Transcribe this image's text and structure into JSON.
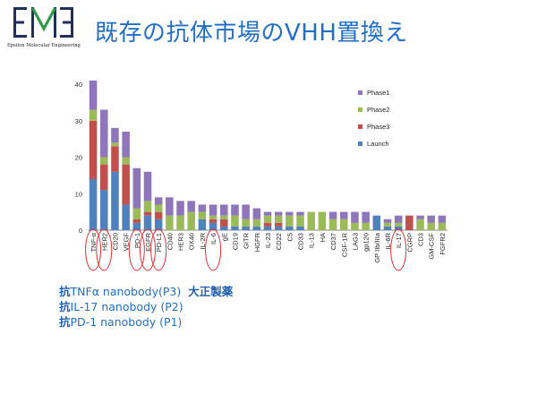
{
  "logo": {
    "text": "Epsilon Molecular Engineering",
    "colors": {
      "navy": "#1e2f5c",
      "green": "#2f9a47"
    }
  },
  "slide": {
    "title": "既存の抗体市場のVHH置換え"
  },
  "colors": {
    "Phase1": "#8f75b9",
    "Phase2": "#9bbb59",
    "Phase3": "#c0504d",
    "Launch": "#4f81bd",
    "highlight": "#e03030",
    "title": "#1f6fc5"
  },
  "chart_data": {
    "type": "bar",
    "stacked": true,
    "ylim": [
      0,
      40
    ],
    "yticks": [
      0,
      10,
      20,
      30,
      40
    ],
    "grid": false,
    "legend_position": "right",
    "categories": [
      "TNF-α",
      "HER2",
      "CD20",
      "VEGF",
      "PD-1",
      "EGFR",
      "PD-L1",
      "CD40",
      "HER3",
      "OX40",
      "IL-2R",
      "IL-6",
      "gE",
      "CD19",
      "GITR",
      "HGFR",
      "IL-23",
      "CD22",
      "C5",
      "CD33",
      "IL-13",
      "HA",
      "CD37",
      "CSF-1R",
      "LAG3",
      "gp120",
      "GP IIb/IIIa",
      "IL-6R",
      "IL-17",
      "CGRP",
      "CD3",
      "GM-CSF",
      "FGFR2"
    ],
    "series": [
      {
        "name": "Launch",
        "values": [
          14,
          11,
          16,
          7,
          2,
          4,
          3,
          0,
          0,
          0,
          3,
          2,
          1,
          1,
          1,
          1,
          1,
          1,
          1,
          1,
          0,
          0,
          0,
          0,
          0,
          0,
          4,
          1,
          1,
          0,
          0,
          0,
          0
        ]
      },
      {
        "name": "Phase3",
        "values": [
          16,
          7,
          7,
          11,
          1,
          1,
          2,
          0,
          0,
          0,
          0,
          1,
          2,
          0,
          0,
          0,
          1,
          1,
          0,
          0,
          0,
          0,
          0,
          0,
          0,
          0,
          0,
          0,
          0,
          4,
          0,
          0,
          0
        ]
      },
      {
        "name": "Phase2",
        "values": [
          3,
          2,
          1,
          2,
          3,
          3,
          2,
          4,
          4,
          5,
          2,
          1,
          1,
          3,
          2,
          2,
          2,
          2,
          3,
          3,
          5,
          5,
          3,
          3,
          2,
          2,
          0,
          1,
          1,
          0,
          3,
          2,
          2
        ]
      },
      {
        "name": "Phase1",
        "values": [
          8,
          13,
          4,
          7,
          11,
          8,
          2,
          5,
          4,
          3,
          2,
          3,
          3,
          3,
          4,
          3,
          1,
          1,
          1,
          1,
          0,
          0,
          2,
          2,
          3,
          3,
          0,
          1,
          2,
          0,
          1,
          2,
          2
        ]
      }
    ],
    "highlighted_categories": [
      "TNF-α",
      "HER2",
      "PD-1",
      "EGFR",
      "PD-L1",
      "IL-6",
      "IL-17"
    ]
  },
  "notes": [
    {
      "prefix": "抗",
      "text": "TNFα nanobody(P3)",
      "company": "大正製薬"
    },
    {
      "prefix": "抗",
      "text": "IL-17 nanobody (P2)",
      "company": ""
    },
    {
      "prefix": "抗",
      "text": "PD-1 nanobody (P1)",
      "company": ""
    }
  ]
}
